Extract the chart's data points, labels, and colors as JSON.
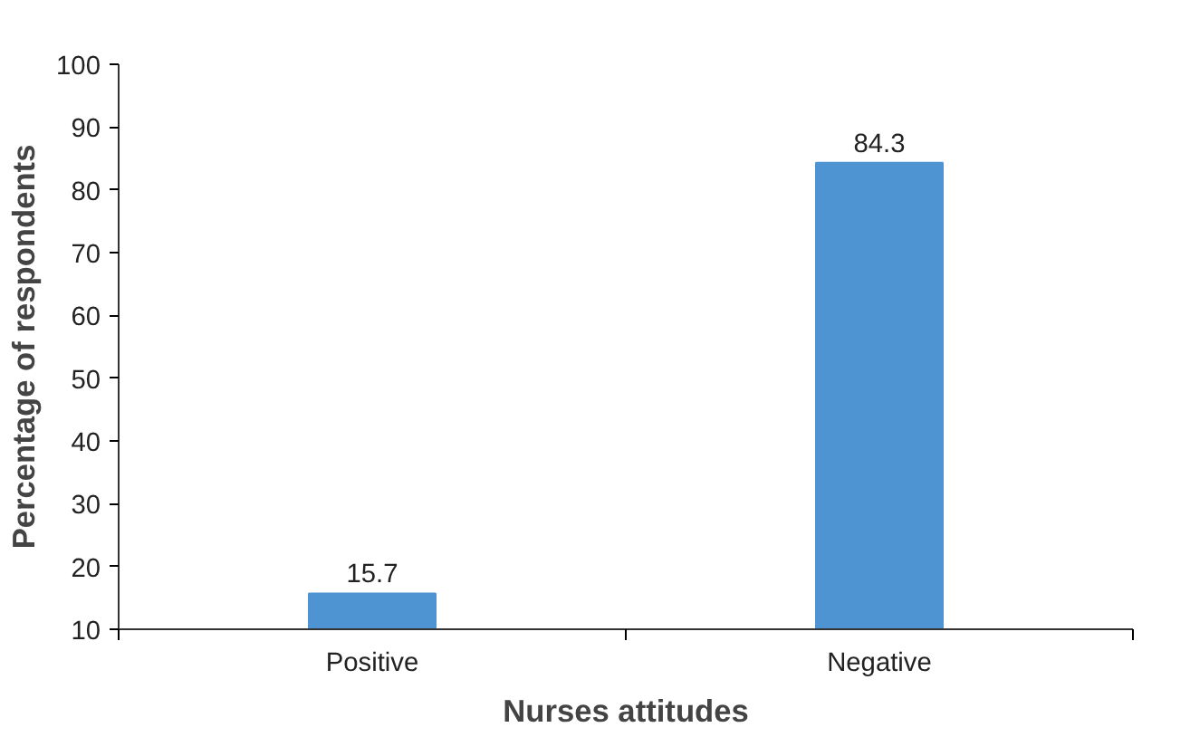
{
  "chart_data": {
    "type": "bar",
    "categories": [
      "Positive",
      "Negative"
    ],
    "values": [
      15.7,
      84.3
    ],
    "color": "#4f94d2",
    "ylim": [
      10,
      100
    ],
    "yticks": [
      10,
      20,
      30,
      40,
      50,
      60,
      70,
      80,
      90,
      100
    ],
    "xlabel": "Nurses attitudes",
    "ylabel": "Percentage of respondents",
    "data_labels": true,
    "grid": false
  }
}
